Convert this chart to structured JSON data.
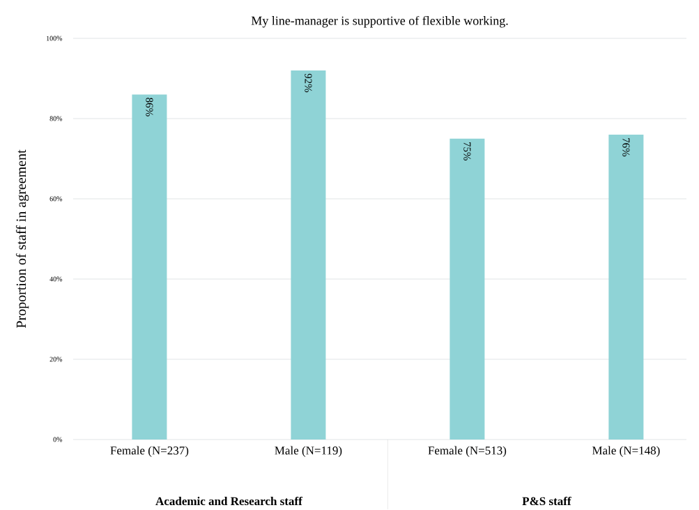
{
  "chart_data": {
    "type": "bar",
    "title": "My line-manager is supportive of flexible working.",
    "ylabel": "Proportion of staff in agreement",
    "categories": [
      "Female  (N=237)",
      "Male (N=119)",
      "Female (N=513)",
      "Male (N=148)"
    ],
    "values": [
      86,
      92,
      75,
      76
    ],
    "color": "#8fd3d6",
    "value_labels": [
      "86%",
      "92%",
      "75%",
      "76%"
    ],
    "ylim": [
      0,
      100
    ],
    "yticks": [
      {
        "value": 0,
        "label": "0%"
      },
      {
        "value": 20,
        "label": "20%"
      },
      {
        "value": 40,
        "label": "40%"
      },
      {
        "value": 60,
        "label": "60%"
      },
      {
        "value": 80,
        "label": "80%"
      },
      {
        "value": 100,
        "label": "100%"
      }
    ],
    "grid": "y",
    "annotations": [
      "Academic and Research staff",
      "P&S staff"
    ]
  }
}
